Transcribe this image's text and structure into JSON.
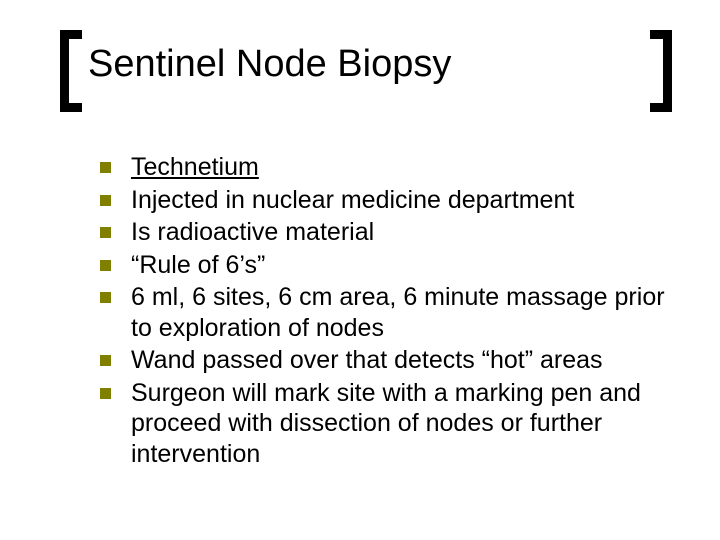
{
  "slide": {
    "title": "Sentinel Node Biopsy",
    "bullet_color": "#808000",
    "bracket_color": "#000000",
    "background_color": "#ffffff",
    "title_fontsize": 38,
    "body_fontsize": 25,
    "items": [
      {
        "text": "Technetium",
        "underline": true
      },
      {
        "text": "Injected in nuclear medicine department",
        "underline": false
      },
      {
        "text": "Is radioactive material",
        "underline": false
      },
      {
        "text": "“Rule of 6’s”",
        "underline": false
      },
      {
        "text": "6 ml, 6 sites, 6 cm area, 6 minute massage prior to exploration of nodes",
        "underline": false
      },
      {
        "text": "Wand passed over that detects “hot” areas",
        "underline": false
      },
      {
        "text": "Surgeon will mark site with a marking pen and proceed with dissection of nodes or further intervention",
        "underline": false
      }
    ]
  }
}
